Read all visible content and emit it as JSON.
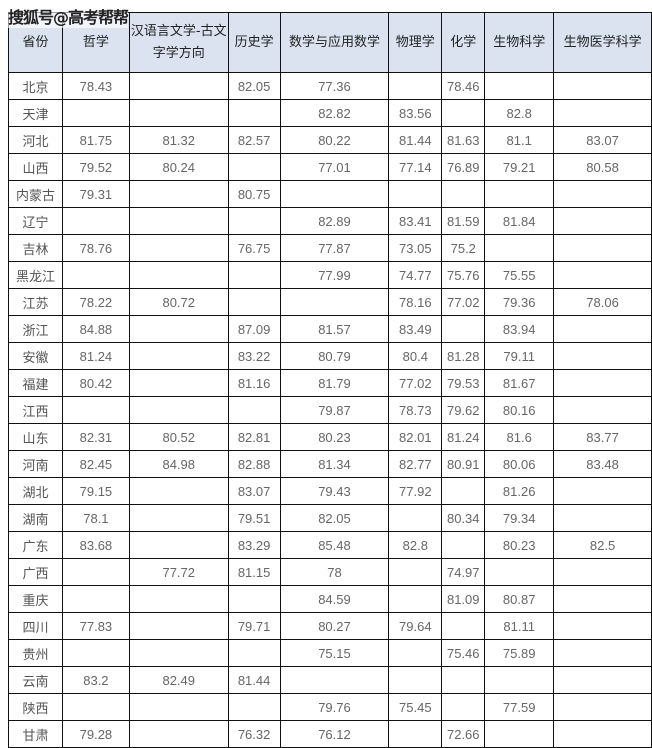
{
  "watermark": "搜狐号@高考帮帮",
  "header_bg": "#dbe3f1",
  "columns": [
    "省份",
    "哲学",
    "汉语言文学-古文字学方向",
    "历史学",
    "数学与应用数学",
    "物理学",
    "化学",
    "生物科学",
    "生物医学科学"
  ],
  "rows": [
    [
      "北京",
      "78.43",
      "",
      "82.05",
      "77.36",
      "",
      "78.46",
      "",
      ""
    ],
    [
      "天津",
      "",
      "",
      "",
      "82.82",
      "83.56",
      "",
      "82.8",
      ""
    ],
    [
      "河北",
      "81.75",
      "81.32",
      "82.57",
      "80.22",
      "81.44",
      "81.63",
      "81.1",
      "83.07"
    ],
    [
      "山西",
      "79.52",
      "80.24",
      "",
      "77.01",
      "77.14",
      "76.89",
      "79.21",
      "80.58"
    ],
    [
      "内蒙古",
      "79.31",
      "",
      "80.75",
      "",
      "",
      "",
      "",
      ""
    ],
    [
      "辽宁",
      "",
      "",
      "",
      "82.89",
      "83.41",
      "81.59",
      "81.84",
      ""
    ],
    [
      "吉林",
      "78.76",
      "",
      "76.75",
      "77.87",
      "73.05",
      "75.2",
      "",
      ""
    ],
    [
      "黑龙江",
      "",
      "",
      "",
      "77.99",
      "74.77",
      "75.76",
      "75.55",
      ""
    ],
    [
      "江苏",
      "78.22",
      "80.72",
      "",
      "",
      "78.16",
      "77.02",
      "79.36",
      "78.06"
    ],
    [
      "浙江",
      "84.88",
      "",
      "87.09",
      "81.57",
      "83.49",
      "",
      "83.94",
      ""
    ],
    [
      "安徽",
      "81.24",
      "",
      "83.22",
      "80.79",
      "80.4",
      "81.28",
      "79.11",
      ""
    ],
    [
      "福建",
      "80.42",
      "",
      "81.16",
      "81.79",
      "77.02",
      "79.53",
      "81.67",
      ""
    ],
    [
      "江西",
      "",
      "",
      "",
      "79.87",
      "78.73",
      "79.62",
      "80.16",
      ""
    ],
    [
      "山东",
      "82.31",
      "80.52",
      "82.81",
      "80.23",
      "82.01",
      "81.24",
      "81.6",
      "83.77"
    ],
    [
      "河南",
      "82.45",
      "84.98",
      "82.88",
      "81.34",
      "82.77",
      "80.91",
      "80.06",
      "83.48"
    ],
    [
      "湖北",
      "79.15",
      "",
      "83.07",
      "79.43",
      "77.92",
      "",
      "81.26",
      ""
    ],
    [
      "湖南",
      "78.1",
      "",
      "79.51",
      "82.05",
      "",
      "80.34",
      "79.34",
      ""
    ],
    [
      "广东",
      "83.68",
      "",
      "83.29",
      "85.48",
      "82.8",
      "",
      "80.23",
      "82.5"
    ],
    [
      "广西",
      "",
      "77.72",
      "81.15",
      "78",
      "",
      "74.97",
      "",
      ""
    ],
    [
      "重庆",
      "",
      "",
      "",
      "84.59",
      "",
      "81.09",
      "80.87",
      ""
    ],
    [
      "四川",
      "77.83",
      "",
      "79.71",
      "80.27",
      "79.64",
      "",
      "81.11",
      ""
    ],
    [
      "贵州",
      "",
      "",
      "",
      "75.15",
      "",
      "75.46",
      "75.89",
      ""
    ],
    [
      "云南",
      "83.2",
      "82.49",
      "81.44",
      "",
      "",
      "",
      "",
      ""
    ],
    [
      "陕西",
      "",
      "",
      "",
      "79.76",
      "75.45",
      "",
      "77.59",
      ""
    ],
    [
      "甘肃",
      "79.28",
      "",
      "76.32",
      "76.12",
      "",
      "72.66",
      "",
      ""
    ]
  ]
}
